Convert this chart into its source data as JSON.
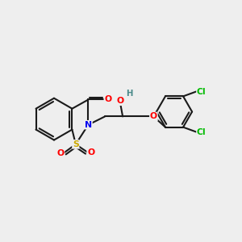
{
  "bg_color": "#eeeeee",
  "bond_color": "#1a1a1a",
  "bond_width": 1.5,
  "atom_colors": {
    "O": "#ff0000",
    "N": "#0000ee",
    "S": "#ccaa00",
    "Cl": "#00bb00",
    "H": "#4a8a8a",
    "C": "#1a1a1a"
  },
  "figsize": [
    3.0,
    3.0
  ],
  "dpi": 100
}
